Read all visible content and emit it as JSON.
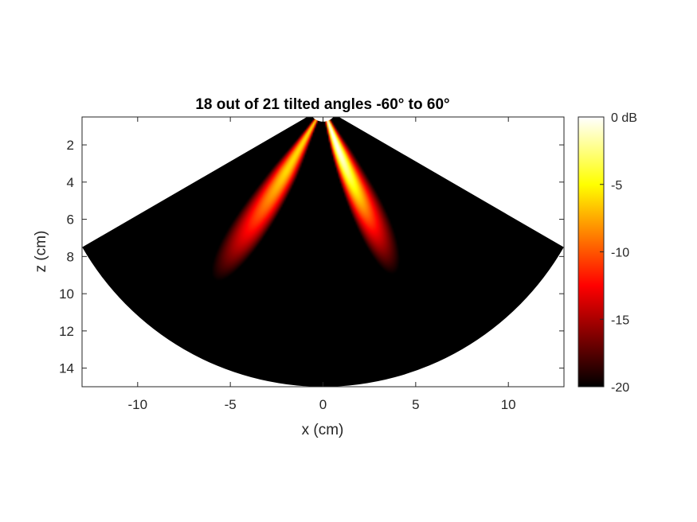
{
  "chart_data": {
    "type": "heatmap",
    "title": "18 out of 21 tilted angles -60° to 60°",
    "xlabel": "x (cm)",
    "ylabel": "z (cm)",
    "xlim": [
      -13,
      13
    ],
    "ylim": [
      0.5,
      15
    ],
    "y_reversed": true,
    "xticks": [
      -10,
      -5,
      0,
      5,
      10
    ],
    "yticks": [
      2,
      4,
      6,
      8,
      10,
      12,
      14
    ],
    "sector": {
      "apex": [
        0,
        0
      ],
      "inner_radius": 0.75,
      "outer_radius": 15,
      "half_angle_deg": 60
    },
    "colormap": "hot",
    "colorbar": {
      "min": -20,
      "max": 0,
      "ticks": [
        0,
        -5,
        -10,
        -15,
        -20
      ],
      "tick_labels": [
        "0 dB",
        "-5",
        "-10",
        "-15",
        "-20"
      ]
    },
    "field_description_values": {
      "lobes": [
        {
          "angle_deg": 20,
          "peak_dB": 0,
          "at_r_cm": 2.5
        },
        {
          "angle_deg": -30,
          "peak_dB": -6,
          "at_r_cm": 4.0
        }
      ],
      "center_null_dB": -20
    }
  }
}
